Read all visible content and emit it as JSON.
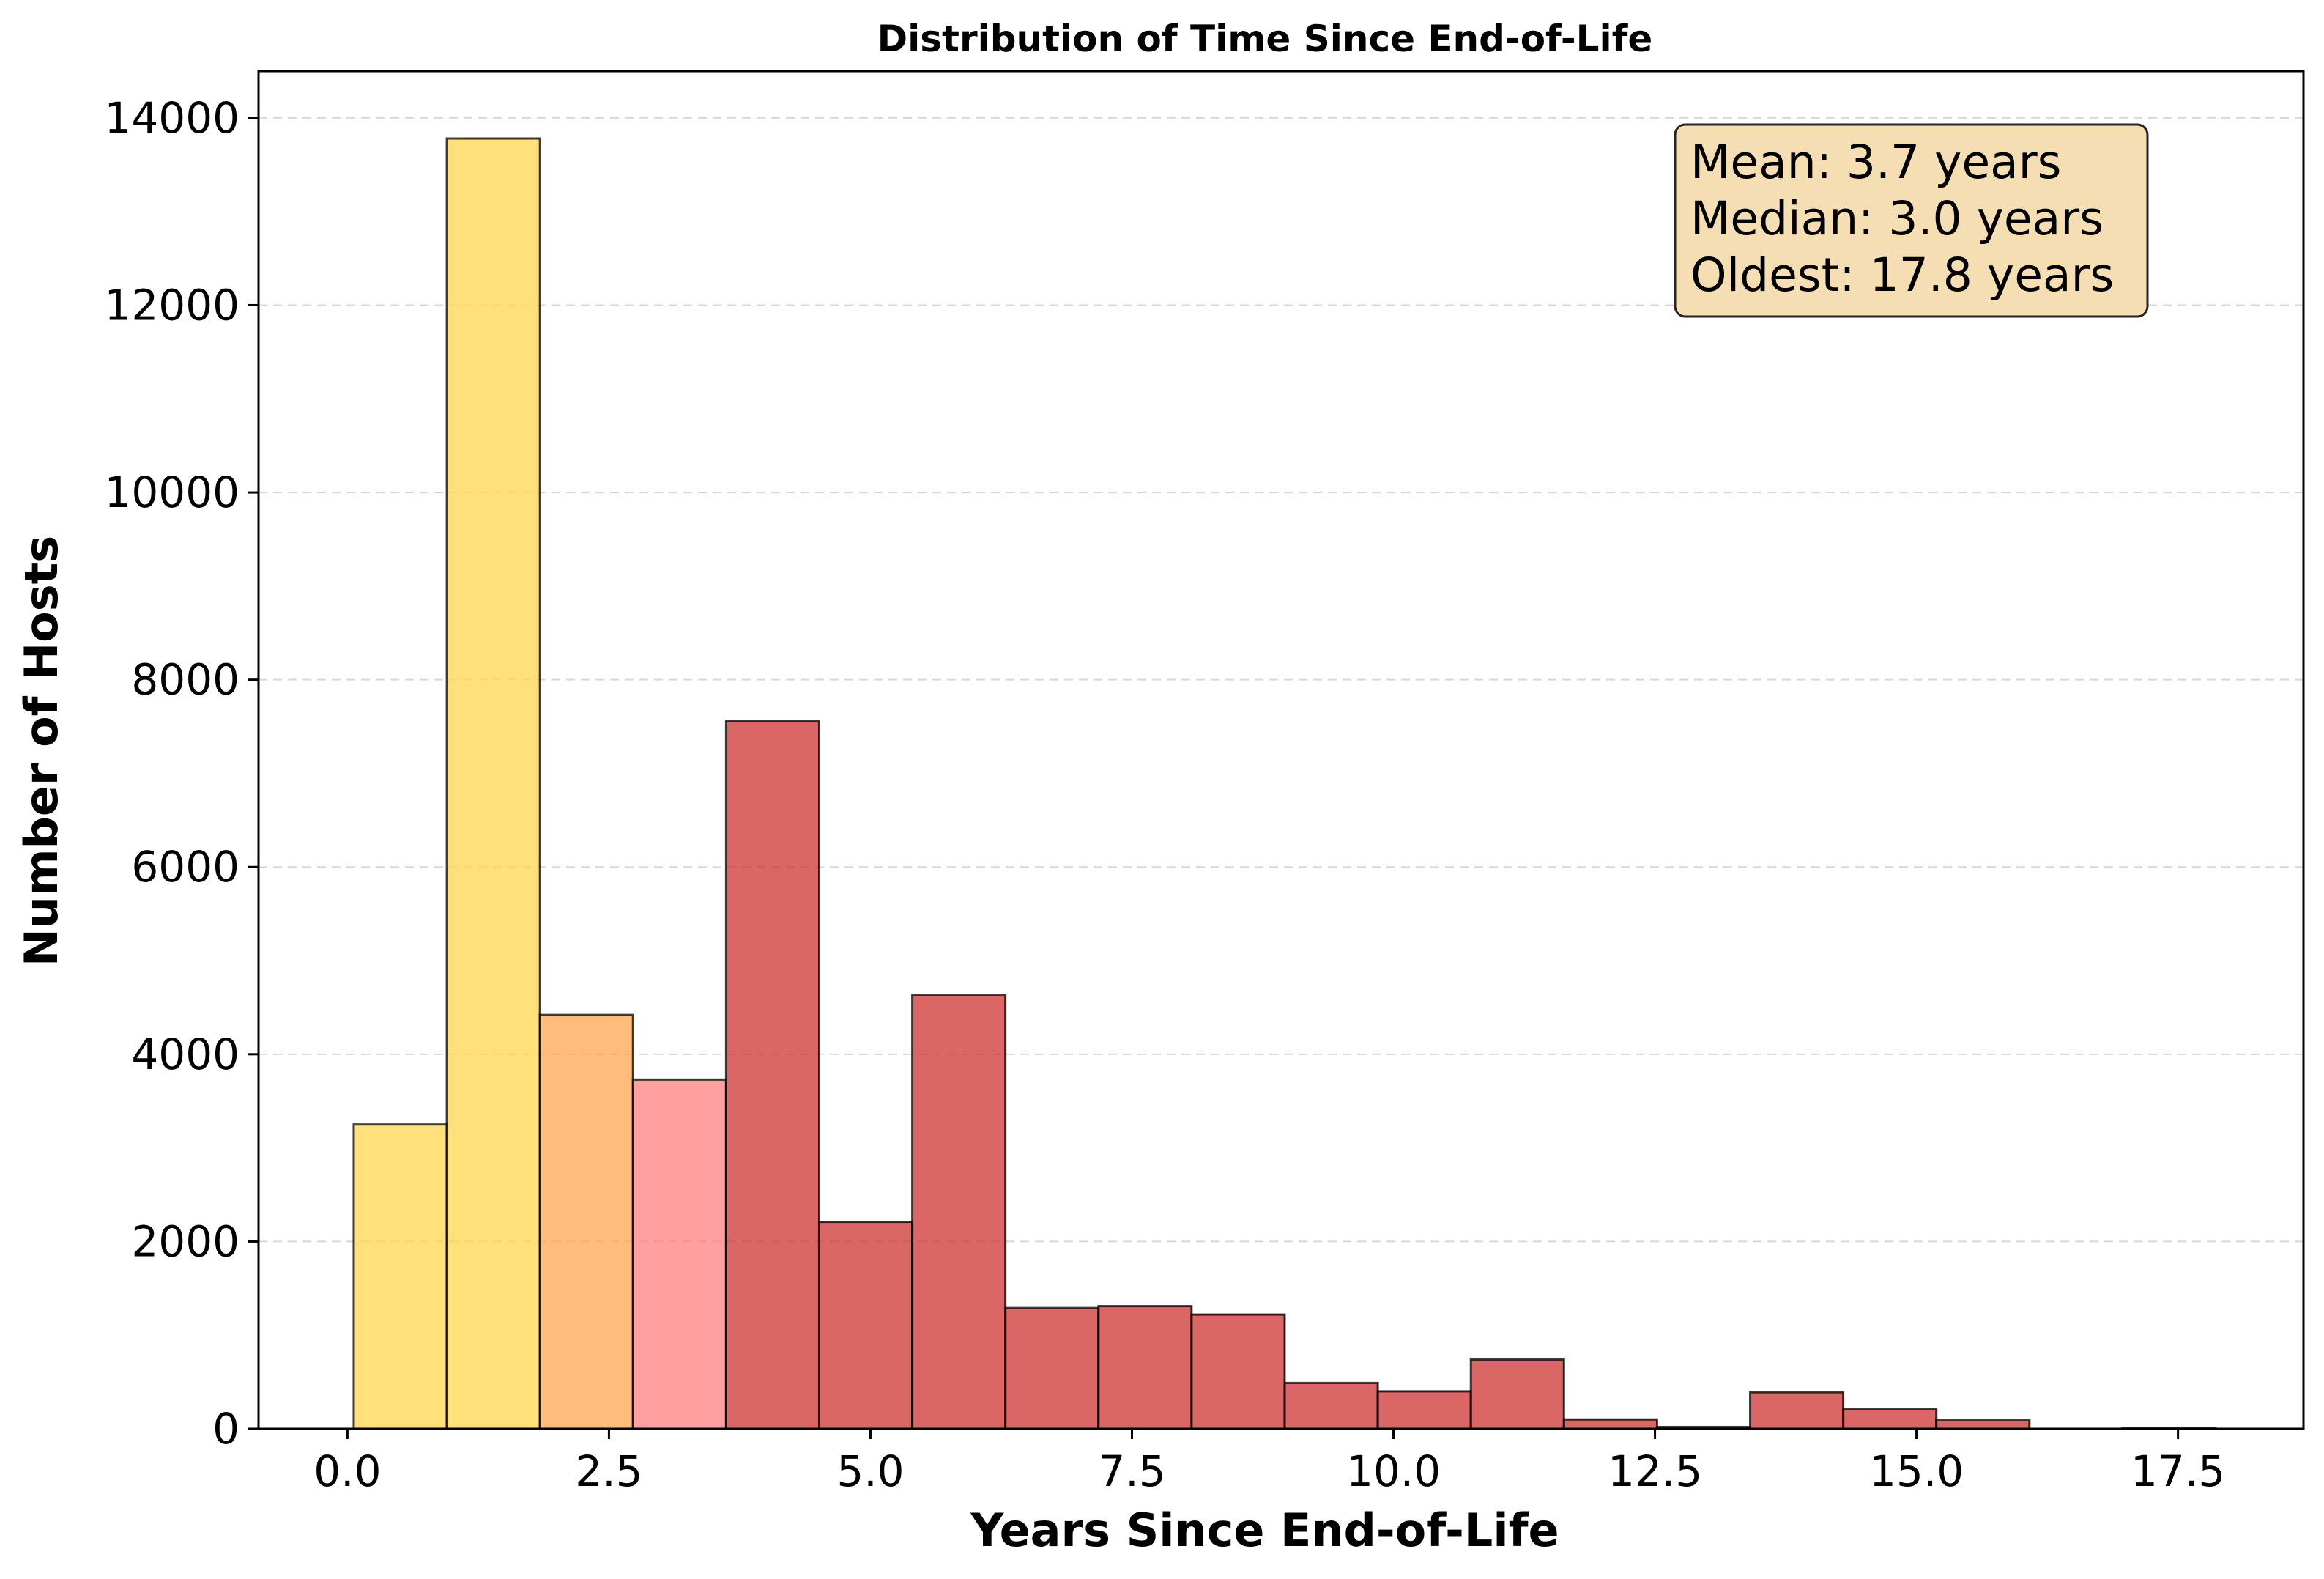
{
  "chart_data": {
    "type": "bar",
    "title": "Distribution of Time Since End-of-Life",
    "xlabel": "Years Since End-of-Life",
    "ylabel": "Number of Hosts",
    "xlim": [
      -0.85,
      18.7
    ],
    "ylim": [
      0,
      14500
    ],
    "grid": "horizontal dashed",
    "x_ticks": [
      "0.0",
      "2.5",
      "5.0",
      "7.5",
      "10.0",
      "12.5",
      "15.0",
      "17.5"
    ],
    "y_ticks": [
      "0",
      "2000",
      "4000",
      "6000",
      "8000",
      "10000",
      "12000",
      "14000"
    ],
    "bins": [
      {
        "x0": 0.06,
        "x1": 0.95,
        "value": 3250,
        "color": "#FFD54F"
      },
      {
        "x0": 0.95,
        "x1": 1.84,
        "value": 13780,
        "color": "#FFD54F"
      },
      {
        "x0": 1.84,
        "x1": 2.73,
        "value": 4420,
        "color": "#FFA64D"
      },
      {
        "x0": 2.73,
        "x1": 3.62,
        "value": 3730,
        "color": "#FF7F7F"
      },
      {
        "x0": 3.62,
        "x1": 4.51,
        "value": 7560,
        "color": "#CD3333"
      },
      {
        "x0": 4.51,
        "x1": 5.4,
        "value": 2210,
        "color": "#CD3333"
      },
      {
        "x0": 5.4,
        "x1": 6.29,
        "value": 4630,
        "color": "#CD3333"
      },
      {
        "x0": 6.29,
        "x1": 7.18,
        "value": 1290,
        "color": "#CD3333"
      },
      {
        "x0": 7.18,
        "x1": 8.07,
        "value": 1310,
        "color": "#CD3333"
      },
      {
        "x0": 8.07,
        "x1": 8.96,
        "value": 1220,
        "color": "#CD3333"
      },
      {
        "x0": 8.96,
        "x1": 9.85,
        "value": 490,
        "color": "#CD3333"
      },
      {
        "x0": 9.85,
        "x1": 10.74,
        "value": 400,
        "color": "#CD3333"
      },
      {
        "x0": 10.74,
        "x1": 11.63,
        "value": 740,
        "color": "#CD3333"
      },
      {
        "x0": 11.63,
        "x1": 12.52,
        "value": 100,
        "color": "#CD3333"
      },
      {
        "x0": 12.52,
        "x1": 13.41,
        "value": 20,
        "color": "#CD3333"
      },
      {
        "x0": 13.41,
        "x1": 14.3,
        "value": 390,
        "color": "#CD3333"
      },
      {
        "x0": 14.3,
        "x1": 15.19,
        "value": 210,
        "color": "#CD3333"
      },
      {
        "x0": 15.19,
        "x1": 16.08,
        "value": 90,
        "color": "#CD3333"
      },
      {
        "x0": 16.08,
        "x1": 16.97,
        "value": 0,
        "color": "#CD3333"
      },
      {
        "x0": 16.97,
        "x1": 17.86,
        "value": 5,
        "color": "#CD3333"
      }
    ],
    "bar_opacity": 0.75,
    "stats_box": {
      "lines": [
        "Mean: 3.7 years",
        "Median: 3.0 years",
        "Oldest: 17.8 years"
      ],
      "background": "#F5DEB3",
      "placement": "top-right"
    }
  }
}
